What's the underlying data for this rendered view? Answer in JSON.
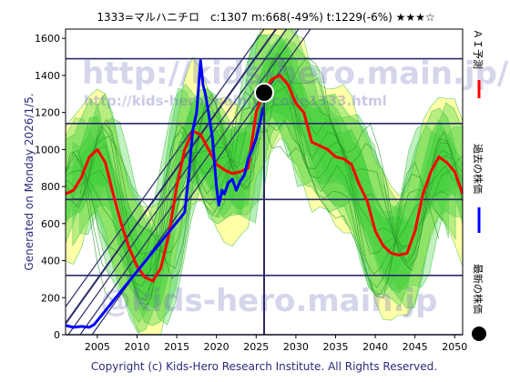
{
  "title": "1333=マルハニチロ　c:1307  m:668(-49%)  t:1229(-6%)  ★★★☆",
  "generated": "Generated on Monday 2026/1/5.",
  "copyright": "Copyright (c) Kids-Hero Research Institute. All Rights Reserved.",
  "watermarks": [
    "http://kids-hero.main.jp/",
    "http://kids-hero.main.jp/code1333.html",
    "@kids-hero.main.jp"
  ],
  "legend": {
    "ai_forecast": "ＡＩ予測",
    "past_price": "過去の株価",
    "latest_price": "最新の株価"
  },
  "colors": {
    "ai_forecast": "#ff0000",
    "past_price": "#0000ff",
    "latest_price": "#000000",
    "band_green": "#33cc33",
    "band_yellow": "#ffff99",
    "grid": "#2a2a6a"
  },
  "chart_data": {
    "type": "line",
    "x_ticks": [
      "2005",
      "2010",
      "2015",
      "2020",
      "2025",
      "2030",
      "2035",
      "2040",
      "2045",
      "2050"
    ],
    "y_ticks": [
      "0",
      "200",
      "400",
      "600",
      "800",
      "1000",
      "1200",
      "1400",
      "1600"
    ],
    "xlim": [
      2001,
      2051
    ],
    "ylim": [
      0,
      1650
    ],
    "horizontal_levels": [
      0,
      320,
      730,
      1140,
      1490
    ],
    "series": [
      {
        "key": "ai_forecast",
        "x": [
          2001,
          2002,
          2003,
          2004,
          2005,
          2006,
          2007,
          2008,
          2009,
          2010,
          2011,
          2012,
          2013,
          2014,
          2015,
          2016,
          2017,
          2018,
          2019,
          2020,
          2021,
          2022,
          2023,
          2024,
          2025,
          2026,
          2027,
          2028,
          2029,
          2030,
          2031,
          2032,
          2033,
          2034,
          2035,
          2036,
          2037,
          2038,
          2039,
          2040,
          2041,
          2042,
          2043,
          2044,
          2045,
          2046,
          2047,
          2048,
          2049,
          2050,
          2051
        ],
        "y": [
          760,
          780,
          850,
          960,
          1000,
          930,
          760,
          600,
          470,
          370,
          310,
          290,
          360,
          540,
          800,
          1000,
          1100,
          1080,
          1000,
          920,
          890,
          870,
          880,
          900,
          1200,
          1320,
          1380,
          1400,
          1350,
          1250,
          1200,
          1040,
          1020,
          1000,
          960,
          950,
          920,
          810,
          720,
          560,
          480,
          440,
          430,
          440,
          560,
          760,
          880,
          960,
          930,
          880,
          760
        ]
      },
      {
        "key": "past_price",
        "x": [
          2001,
          2002,
          2003,
          2004,
          2004.6,
          2016,
          2016.5,
          2017,
          2017.5,
          2018,
          2018.3,
          2018.6,
          2019,
          2019.5,
          2020,
          2020.3,
          2020.7,
          2021,
          2021.5,
          2022,
          2022.5,
          2023,
          2023.5,
          2024,
          2024.5,
          2025,
          2025.5,
          2025.9
        ],
        "y": [
          50,
          40,
          45,
          40,
          55,
          660,
          850,
          1100,
          1200,
          1480,
          1350,
          1300,
          1200,
          1060,
          800,
          700,
          780,
          760,
          820,
          840,
          780,
          830,
          860,
          950,
          1000,
          1060,
          1150,
          1229
        ]
      }
    ],
    "latest_point": {
      "x": 2026,
      "y": 1307
    }
  }
}
